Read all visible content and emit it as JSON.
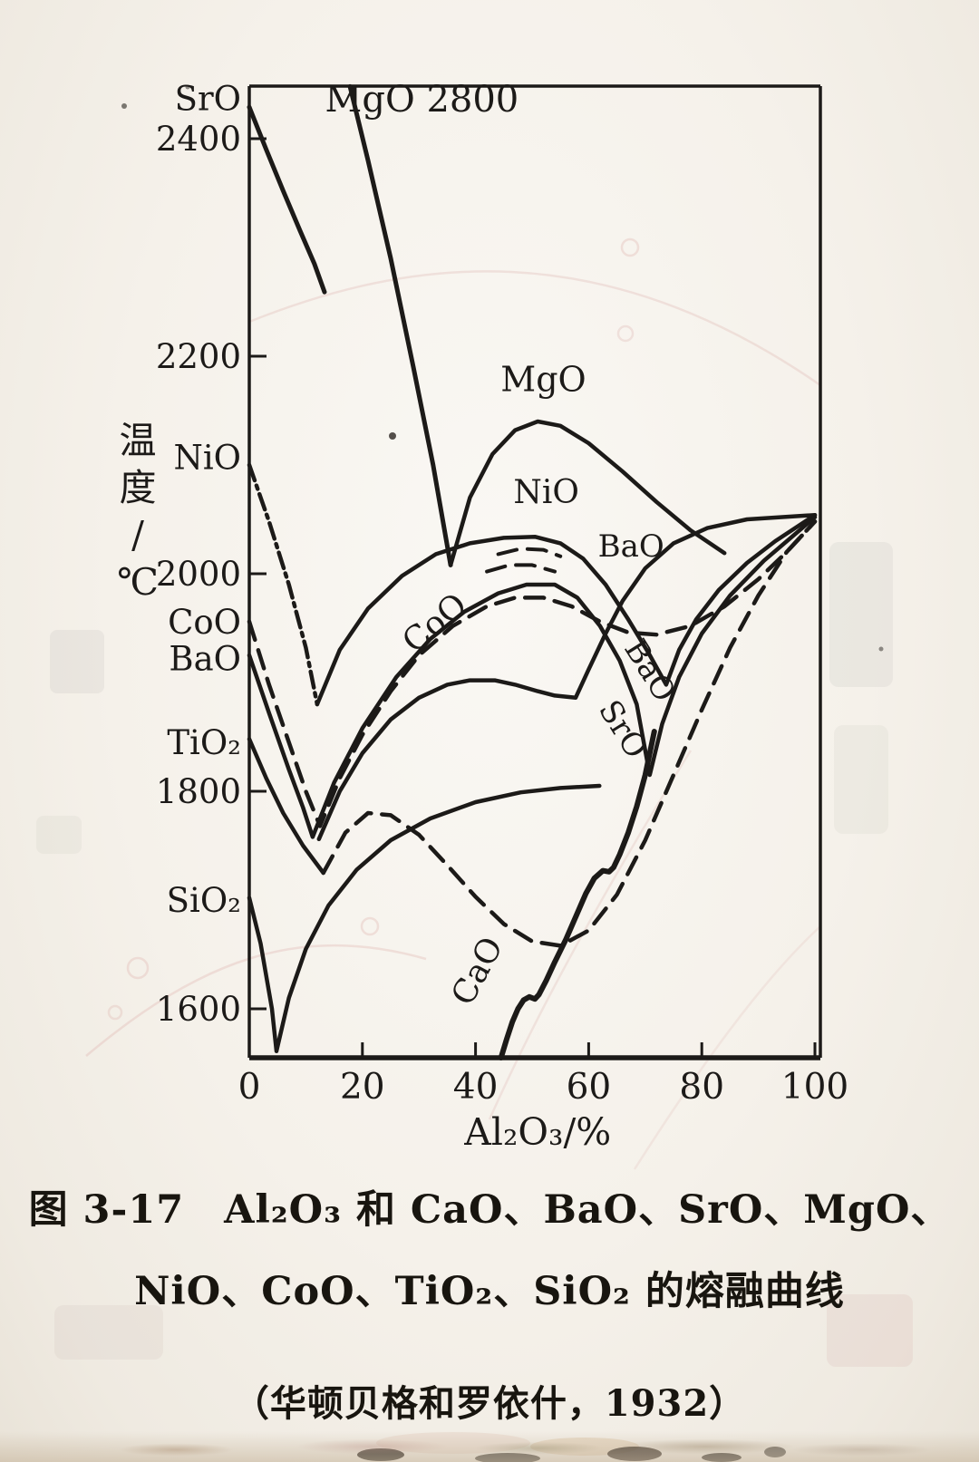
{
  "figure": {
    "caption_line1": "图 3-17　Al₂O₃ 和 CaO、BaO、SrO、MgO、",
    "caption_line2": "NiO、CoO、TiO₂、SiO₂ 的熔融曲线",
    "caption_line3": "（华顿贝格和罗依什，1932）"
  },
  "chart_data": {
    "type": "line",
    "title": "Al₂O₃ 和 CaO、BaO、SrO、MgO、NiO、CoO、TiO₂、SiO₂ 的熔融曲线（华顿贝格和罗依什，1932）",
    "xlabel": "Al₂O₃/%",
    "ylabel": "温度/℃",
    "xlim": [
      0,
      100
    ],
    "ylim": [
      1555,
      2448
    ],
    "x_ticks": [
      0,
      20,
      40,
      60,
      80,
      100
    ],
    "y_ticks": [
      2400,
      2200,
      2000,
      1800,
      1600
    ],
    "grid": false,
    "legend": "labels drawn on curves",
    "series": [
      {
        "id": "SrO-descent",
        "name": "SrO (descent from 2430, truncated)",
        "style": "solid",
        "width": 5,
        "points": [
          [
            0,
            2429
          ],
          [
            3,
            2390
          ],
          [
            6,
            2352
          ],
          [
            9,
            2315
          ],
          [
            11.5,
            2285
          ],
          [
            13.3,
            2259
          ]
        ]
      },
      {
        "id": "MgO-descent",
        "name": "MgO (descent from 2800)",
        "style": "solid",
        "width": 5,
        "points": [
          [
            17.8,
            2448
          ],
          [
            21,
            2380
          ],
          [
            25,
            2290
          ],
          [
            29,
            2190
          ],
          [
            32.5,
            2100
          ],
          [
            35.6,
            2008
          ]
        ]
      },
      {
        "id": "MgO-dome",
        "name": "MgO (liquidus dome)",
        "style": "solid",
        "width": 4.5,
        "points": [
          [
            35.6,
            2008
          ],
          [
            39,
            2070
          ],
          [
            43,
            2110
          ],
          [
            47,
            2132
          ],
          [
            51,
            2140
          ],
          [
            55,
            2136
          ],
          [
            60,
            2120
          ],
          [
            66,
            2094
          ],
          [
            72,
            2066
          ],
          [
            78,
            2040
          ],
          [
            84,
            2019
          ]
        ]
      },
      {
        "id": "NiO-descent",
        "name": "NiO (descent, dash-dot)",
        "style": "dashdot",
        "width": 4.5,
        "points": [
          [
            0,
            2100
          ],
          [
            3.5,
            2048
          ],
          [
            7,
            1990
          ],
          [
            10,
            1932
          ],
          [
            12,
            1880
          ]
        ]
      },
      {
        "id": "NiO-main",
        "name": "NiO (dome and rise to Al₂O₃)",
        "style": "solid",
        "width": 4.5,
        "points": [
          [
            12,
            1880
          ],
          [
            16,
            1930
          ],
          [
            21,
            1968
          ],
          [
            27,
            1998
          ],
          [
            33,
            2018
          ],
          [
            39,
            2028
          ],
          [
            45,
            2033
          ],
          [
            50.5,
            2034
          ],
          [
            55,
            2028
          ],
          [
            59,
            2014
          ],
          [
            63,
            1990
          ],
          [
            67,
            1958
          ],
          [
            70.5,
            1928
          ],
          [
            73.7,
            1898
          ],
          [
            76,
            1930
          ],
          [
            79,
            1958
          ],
          [
            83,
            1985
          ],
          [
            88,
            2010
          ],
          [
            93,
            2030
          ],
          [
            100,
            2054
          ]
        ]
      },
      {
        "id": "NiO-hidden-1",
        "name": "NiO (hidden portion, dashed)",
        "style": "dash",
        "width": 4,
        "points": [
          [
            44,
            2018
          ],
          [
            48,
            2023
          ],
          [
            52,
            2022
          ],
          [
            55,
            2016
          ]
        ]
      },
      {
        "id": "NiO-hidden-2",
        "name": "NiO (hidden portion, dashed)",
        "style": "dash",
        "width": 4,
        "points": [
          [
            42,
            2002
          ],
          [
            46,
            2008
          ],
          [
            50,
            2008
          ],
          [
            54,
            2002
          ]
        ]
      },
      {
        "id": "CoO",
        "name": "CoO (dashed)",
        "style": "dash",
        "width": 4.5,
        "points": [
          [
            0,
            1956
          ],
          [
            3.5,
            1898
          ],
          [
            7,
            1845
          ],
          [
            10,
            1800
          ],
          [
            12.5,
            1768
          ],
          [
            16,
            1812
          ],
          [
            20,
            1852
          ],
          [
            25,
            1892
          ],
          [
            30,
            1925
          ],
          [
            36,
            1952
          ],
          [
            42,
            1970
          ],
          [
            47,
            1978
          ],
          [
            52,
            1978
          ],
          [
            57,
            1970
          ],
          [
            62,
            1956
          ],
          [
            67,
            1946
          ],
          [
            72,
            1944
          ],
          [
            78,
            1952
          ],
          [
            84,
            1970
          ],
          [
            90,
            1995
          ],
          [
            95,
            2020
          ],
          [
            100,
            2048
          ]
        ]
      },
      {
        "id": "BaO",
        "name": "BaO",
        "style": "solid",
        "width": 4.5,
        "points": [
          [
            0,
            1925
          ],
          [
            3.5,
            1872
          ],
          [
            7,
            1820
          ],
          [
            9.5,
            1785
          ],
          [
            11.2,
            1758
          ],
          [
            15,
            1808
          ],
          [
            20,
            1858
          ],
          [
            26,
            1905
          ],
          [
            32,
            1940
          ],
          [
            38,
            1965
          ],
          [
            44,
            1982
          ],
          [
            49,
            1990
          ],
          [
            54,
            1990
          ],
          [
            58,
            1978
          ],
          [
            62,
            1952
          ],
          [
            65.5,
            1920
          ],
          [
            68.5,
            1880
          ],
          [
            70.8,
            1815
          ],
          [
            73,
            1862
          ],
          [
            76,
            1905
          ],
          [
            80,
            1945
          ],
          [
            85,
            1980
          ],
          [
            91,
            2012
          ],
          [
            100,
            2052
          ]
        ]
      },
      {
        "id": "SrO-dome",
        "name": "SrO (dome and rise to Al₂O₃)",
        "style": "solid",
        "width": 4.5,
        "points": [
          [
            12.3,
            1756
          ],
          [
            16,
            1800
          ],
          [
            20,
            1835
          ],
          [
            25,
            1866
          ],
          [
            30,
            1886
          ],
          [
            35,
            1898
          ],
          [
            39,
            1902
          ],
          [
            43.4,
            1902
          ],
          [
            47,
            1898
          ],
          [
            51,
            1892
          ],
          [
            54,
            1888
          ],
          [
            57.7,
            1886
          ],
          [
            60,
            1912
          ],
          [
            63,
            1945
          ],
          [
            66,
            1975
          ],
          [
            70,
            2005
          ],
          [
            75,
            2028
          ],
          [
            81,
            2042
          ],
          [
            88,
            2050
          ],
          [
            100,
            2054
          ]
        ]
      },
      {
        "id": "TiO2-descent",
        "name": "TiO₂ (descent)",
        "style": "solid",
        "width": 4.5,
        "points": [
          [
            0,
            1848
          ],
          [
            3,
            1812
          ],
          [
            6,
            1780
          ],
          [
            9.5,
            1750
          ],
          [
            13.1,
            1725
          ]
        ]
      },
      {
        "id": "TiO2-rise",
        "name": "TiO₂ (rise, dashed)",
        "style": "dash",
        "width": 4.5,
        "points": [
          [
            13.1,
            1725
          ],
          [
            17,
            1762
          ],
          [
            21,
            1780
          ],
          [
            25,
            1778
          ],
          [
            30,
            1760
          ],
          [
            35,
            1732
          ],
          [
            40,
            1703
          ],
          [
            45,
            1678
          ],
          [
            50,
            1662
          ],
          [
            55,
            1658
          ],
          [
            60,
            1672
          ],
          [
            65,
            1705
          ],
          [
            70,
            1755
          ],
          [
            75,
            1815
          ],
          [
            80,
            1875
          ],
          [
            85,
            1932
          ],
          [
            90,
            1980
          ],
          [
            95,
            2020
          ],
          [
            100,
            2048
          ]
        ]
      },
      {
        "id": "SiO2",
        "name": "SiO₂",
        "style": "solid",
        "width": 4.5,
        "points": [
          [
            0,
            1702
          ],
          [
            2,
            1660
          ],
          [
            4,
            1600
          ],
          [
            4.8,
            1561
          ],
          [
            7,
            1610
          ],
          [
            10,
            1655
          ],
          [
            14,
            1695
          ],
          [
            19,
            1728
          ],
          [
            25,
            1755
          ],
          [
            32,
            1775
          ],
          [
            40,
            1790
          ],
          [
            48,
            1799
          ],
          [
            55,
            1803
          ],
          [
            61.9,
            1805
          ]
        ]
      },
      {
        "id": "CaO",
        "name": "CaO",
        "style": "solid",
        "width": 6,
        "points": [
          [
            44.5,
            1555
          ],
          [
            45.5,
            1572
          ],
          [
            46.5,
            1588
          ],
          [
            47.5,
            1600
          ],
          [
            48.5,
            1608
          ],
          [
            49.5,
            1611
          ],
          [
            50.5,
            1609
          ],
          [
            51.2,
            1613
          ],
          [
            52.5,
            1626
          ],
          [
            54,
            1643
          ],
          [
            56,
            1664
          ],
          [
            58,
            1688
          ],
          [
            59.5,
            1706
          ],
          [
            61,
            1720
          ],
          [
            62.5,
            1727
          ],
          [
            63.6,
            1726
          ],
          [
            64.4,
            1730
          ],
          [
            65.5,
            1742
          ],
          [
            67,
            1762
          ],
          [
            68.5,
            1786
          ],
          [
            70,
            1815
          ],
          [
            71.6,
            1855
          ]
        ]
      }
    ],
    "curve_labels": [
      {
        "text": "MgO 2800",
        "x_pct": 30.5,
        "temp_c": 2425,
        "rot": 0,
        "size": 40
      },
      {
        "text": "MgO",
        "x_pct": 52,
        "temp_c": 2168,
        "rot": 0,
        "size": 38
      },
      {
        "text": "NiO",
        "x_pct": 52.5,
        "temp_c": 2065,
        "rot": 0,
        "size": 36
      },
      {
        "text": "BaO",
        "x_pct": 67.5,
        "temp_c": 2016,
        "rot": 0,
        "size": 34
      },
      {
        "text": "CoO",
        "x_pct": 34,
        "temp_c": 1947,
        "rot": -40,
        "size": 36
      },
      {
        "text": "BaO",
        "x_pct": 69.3,
        "temp_c": 1906,
        "rot": 58,
        "size": 34
      },
      {
        "text": "SrO",
        "x_pct": 64.5,
        "temp_c": 1852,
        "rot": 58,
        "size": 34
      },
      {
        "text": "CaO",
        "x_pct": 42,
        "temp_c": 1630,
        "rot": -62,
        "size": 36
      }
    ],
    "axis_left_labels": [
      {
        "text": "SrO",
        "temp_c": 2437
      },
      {
        "text": "NiO",
        "temp_c": 2107
      },
      {
        "text": "CoO",
        "temp_c": 1956
      },
      {
        "text": "BaO",
        "temp_c": 1922
      },
      {
        "text": "TiO₂",
        "temp_c": 1845
      },
      {
        "text": "SiO₂",
        "temp_c": 1700
      }
    ]
  }
}
